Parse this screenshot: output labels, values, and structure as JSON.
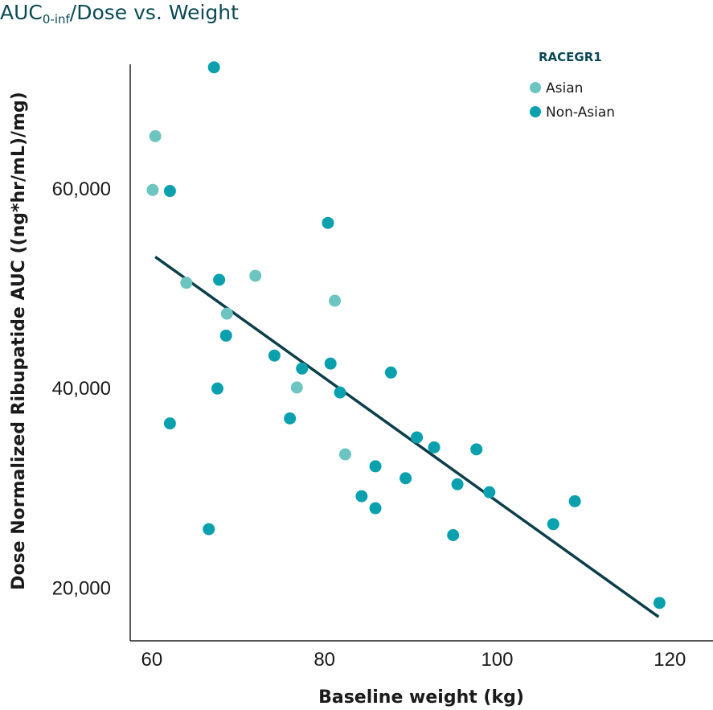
{
  "chart_data": {
    "type": "scatter",
    "title": {
      "main": "AUC",
      "sub": "0-inf",
      "rest": "/Dose vs. Weight"
    },
    "xlabel": "Baseline weight (kg)",
    "ylabel": "Dose Normalized Ribupatide AUC ((ng*hr/mL)/mg)",
    "xlim": [
      57.5,
      125
    ],
    "ylim": [
      14700,
      72500
    ],
    "x_ticks": [
      {
        "value": 60,
        "label": "60"
      },
      {
        "value": 80,
        "label": "80"
      },
      {
        "value": 100,
        "label": "100"
      },
      {
        "value": 120,
        "label": "120"
      }
    ],
    "y_ticks": [
      {
        "value": 20000,
        "label": "20,000"
      },
      {
        "value": 40000,
        "label": "40,000"
      },
      {
        "value": 60000,
        "label": "60,000"
      }
    ],
    "legend": {
      "title": "RACEGR1",
      "position": "top-right"
    },
    "series": [
      {
        "name": "Asian",
        "color": "#6cc5c0",
        "points": [
          {
            "x": 60.4,
            "y": 65300
          },
          {
            "x": 60.1,
            "y": 59900
          },
          {
            "x": 64.0,
            "y": 50600
          },
          {
            "x": 68.7,
            "y": 47500
          },
          {
            "x": 72.0,
            "y": 51300
          },
          {
            "x": 76.8,
            "y": 40100
          },
          {
            "x": 81.2,
            "y": 48800
          },
          {
            "x": 82.4,
            "y": 33400
          }
        ]
      },
      {
        "name": "Non-Asian",
        "color": "#0aa0ae",
        "points": [
          {
            "x": 67.2,
            "y": 72200
          },
          {
            "x": 62.1,
            "y": 59800
          },
          {
            "x": 67.8,
            "y": 50900
          },
          {
            "x": 68.6,
            "y": 45300
          },
          {
            "x": 67.6,
            "y": 40000
          },
          {
            "x": 62.1,
            "y": 36500
          },
          {
            "x": 66.6,
            "y": 25900
          },
          {
            "x": 74.2,
            "y": 43300
          },
          {
            "x": 77.4,
            "y": 42000
          },
          {
            "x": 76.0,
            "y": 37000
          },
          {
            "x": 80.4,
            "y": 56600
          },
          {
            "x": 80.7,
            "y": 42500
          },
          {
            "x": 81.8,
            "y": 39600
          },
          {
            "x": 87.7,
            "y": 41600
          },
          {
            "x": 85.9,
            "y": 32200
          },
          {
            "x": 89.4,
            "y": 31000
          },
          {
            "x": 84.3,
            "y": 29200
          },
          {
            "x": 85.9,
            "y": 28000
          },
          {
            "x": 90.7,
            "y": 35100
          },
          {
            "x": 92.7,
            "y": 34100
          },
          {
            "x": 97.6,
            "y": 33900
          },
          {
            "x": 95.4,
            "y": 30400
          },
          {
            "x": 99.1,
            "y": 29600
          },
          {
            "x": 94.9,
            "y": 25300
          },
          {
            "x": 106.5,
            "y": 26400
          },
          {
            "x": 109.0,
            "y": 28700
          },
          {
            "x": 118.8,
            "y": 18500
          }
        ]
      }
    ],
    "trendline": {
      "color": "#0b3f4a",
      "x": [
        60.4,
        118.7
      ],
      "y": [
        53200,
        17100
      ]
    }
  }
}
